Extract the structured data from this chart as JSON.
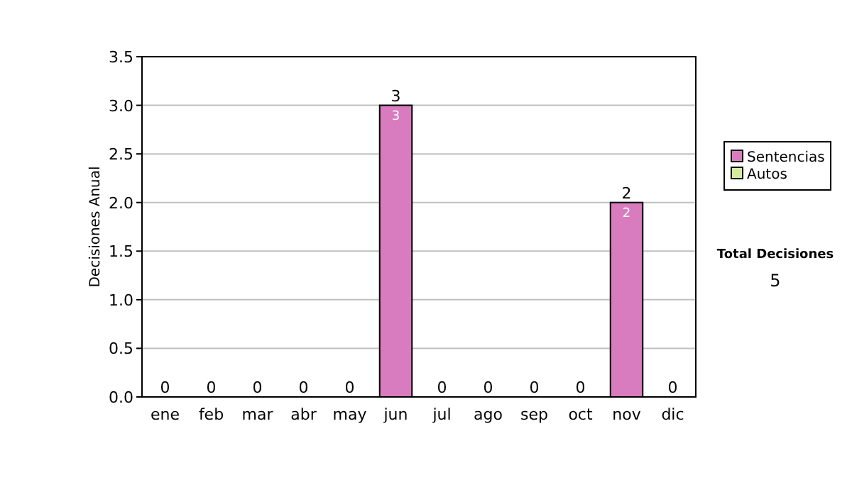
{
  "chart_data": {
    "type": "bar",
    "stacked": true,
    "ylabel": "Decisiones Anual",
    "categories": [
      "ene",
      "feb",
      "mar",
      "abr",
      "may",
      "jun",
      "jul",
      "ago",
      "sep",
      "oct",
      "nov",
      "dic"
    ],
    "series": [
      {
        "name": "Sentencias",
        "color": "#d97bbf",
        "values": [
          0,
          0,
          0,
          0,
          0,
          3,
          0,
          0,
          0,
          0,
          2,
          0
        ],
        "value_labels": [
          null,
          null,
          null,
          null,
          null,
          "3",
          null,
          null,
          null,
          null,
          "2",
          null
        ]
      },
      {
        "name": "Autos",
        "color": "#d6eba0",
        "values": [
          0,
          0,
          0,
          0,
          0,
          0,
          0,
          0,
          0,
          0,
          0,
          0
        ]
      }
    ],
    "totals": [
      "0",
      "0",
      "0",
      "0",
      "0",
      "3",
      "0",
      "0",
      "0",
      "0",
      "2",
      "0"
    ],
    "ylim": [
      0,
      3.5
    ],
    "yticks": [
      {
        "value": 0,
        "label": "0.0"
      },
      {
        "value": 0.5,
        "label": "0.5"
      },
      {
        "value": 1,
        "label": "1.0"
      },
      {
        "value": 1.5,
        "label": "1.5"
      },
      {
        "value": 2,
        "label": "2.0"
      },
      {
        "value": 2.5,
        "label": "2.5"
      },
      {
        "value": 3,
        "label": "3.0"
      },
      {
        "value": 3.5,
        "label": "3.5"
      }
    ],
    "grid": "y",
    "legend": "right",
    "annotations": [
      "Total Decisiones",
      "5"
    ]
  }
}
